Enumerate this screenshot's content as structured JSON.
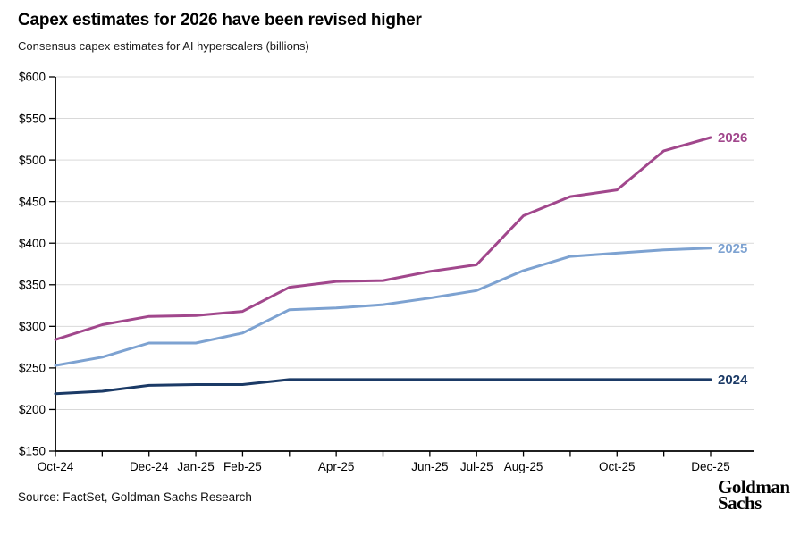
{
  "header": {
    "title": "Capex estimates for 2026 have been revised higher",
    "subtitle": "Consensus capex estimates for AI hyperscalers (billions)"
  },
  "footer": {
    "source": "Source: FactSet, Goldman Sachs Research",
    "logo_line1": "Goldman",
    "logo_line2": "Sachs"
  },
  "chart_data": {
    "type": "line",
    "title": "Capex estimates for 2026 have been revised higher",
    "subtitle": "Consensus capex estimates for AI hyperscalers (billions)",
    "categories": [
      "Oct-24",
      "Nov-24",
      "Dec-24",
      "Jan-25",
      "Feb-25",
      "Mar-25",
      "Apr-25",
      "May-25",
      "Jun-25",
      "Jul-25",
      "Aug-25",
      "Sep-25",
      "Oct-25",
      "Nov-25",
      "Dec-25"
    ],
    "x_tick_labels_shown": [
      "Oct-24",
      "Dec-24",
      "Jan-25",
      "Feb-25",
      "Apr-25",
      "Jun-25",
      "Jul-25",
      "Aug-25",
      "Oct-25",
      "Dec-25"
    ],
    "series": [
      {
        "name": "2026",
        "color": "#a1478c",
        "values": [
          284,
          302,
          312,
          313,
          318,
          347,
          354,
          355,
          366,
          374,
          433,
          456,
          464,
          511,
          527
        ]
      },
      {
        "name": "2025",
        "color": "#7da2d1",
        "values": [
          253,
          263,
          280,
          280,
          292,
          320,
          322,
          326,
          334,
          343,
          367,
          384,
          388,
          392,
          394
        ]
      },
      {
        "name": "2024",
        "color": "#1b3a66",
        "values": [
          219,
          222,
          229,
          230,
          230,
          236,
          236,
          236,
          236,
          236,
          236,
          236,
          236,
          236,
          236
        ]
      }
    ],
    "ylim": [
      150,
      600
    ],
    "y_ticks": [
      150,
      200,
      250,
      300,
      350,
      400,
      450,
      500,
      550,
      600
    ],
    "y_tick_prefix": "$",
    "xlabel": "",
    "ylabel": "",
    "grid": "horizontal",
    "legend_position": "line-end-labels",
    "colors": {
      "gridline": "#d9d9d9",
      "axis": "#000000",
      "tick_label": "#000000"
    }
  }
}
